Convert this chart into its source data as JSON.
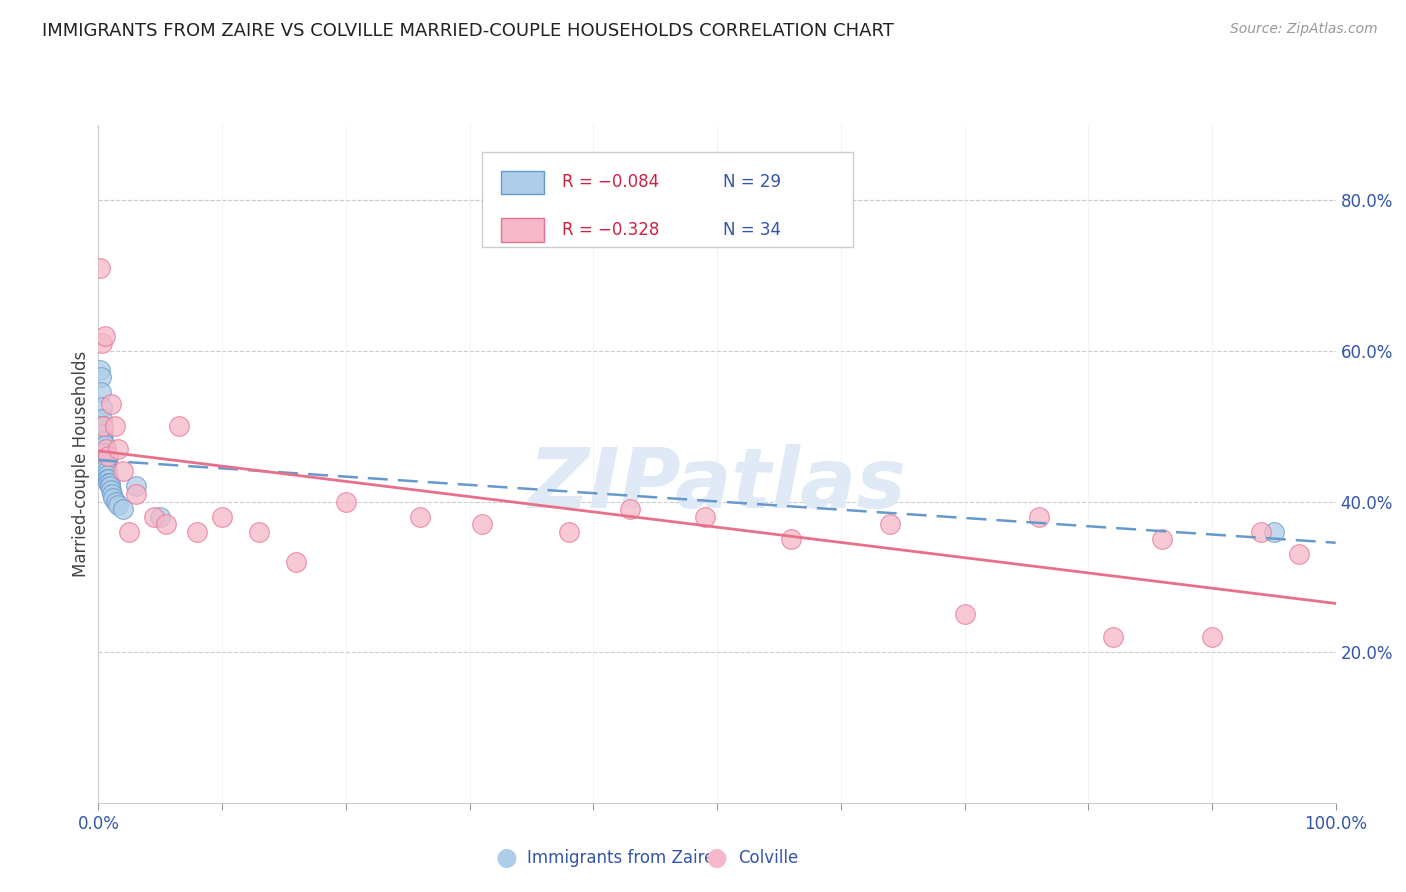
{
  "title": "IMMIGRANTS FROM ZAIRE VS COLVILLE MARRIED-COUPLE HOUSEHOLDS CORRELATION CHART",
  "source": "Source: ZipAtlas.com",
  "ylabel": "Married-couple Households",
  "ytick_labels": [
    "20.0%",
    "40.0%",
    "60.0%",
    "80.0%"
  ],
  "ytick_values": [
    0.2,
    0.4,
    0.6,
    0.8
  ],
  "watermark": "ZIPatlas",
  "legend_r1": "R = −0.084",
  "legend_n1": "N = 29",
  "legend_r2": "R = −0.328",
  "legend_n2": "N = 34",
  "series1_label": "Immigrants from Zaire",
  "series2_label": "Colville",
  "series1_fill": "#aecde8",
  "series2_fill": "#f5b8c8",
  "series1_edge": "#6699cc",
  "series2_edge": "#e87090",
  "trend1_color": "#6699cc",
  "trend2_color": "#e8708a",
  "xlim": [
    0.0,
    1.0
  ],
  "ylim": [
    0.0,
    0.9
  ],
  "xtick_positions": [
    0.0,
    0.1,
    0.2,
    0.3,
    0.4,
    0.5,
    0.6,
    0.7,
    0.8,
    0.9,
    1.0
  ],
  "series1_x": [
    0.001,
    0.002,
    0.002,
    0.003,
    0.003,
    0.004,
    0.004,
    0.004,
    0.005,
    0.005,
    0.005,
    0.006,
    0.006,
    0.007,
    0.007,
    0.007,
    0.008,
    0.008,
    0.009,
    0.009,
    0.01,
    0.011,
    0.012,
    0.014,
    0.016,
    0.02,
    0.03,
    0.05,
    0.95
  ],
  "series1_y": [
    0.575,
    0.565,
    0.545,
    0.525,
    0.51,
    0.5,
    0.49,
    0.48,
    0.475,
    0.465,
    0.455,
    0.45,
    0.445,
    0.44,
    0.435,
    0.43,
    0.43,
    0.425,
    0.425,
    0.42,
    0.415,
    0.41,
    0.405,
    0.4,
    0.395,
    0.39,
    0.42,
    0.38,
    0.36
  ],
  "series2_x": [
    0.001,
    0.003,
    0.004,
    0.005,
    0.006,
    0.008,
    0.01,
    0.013,
    0.016,
    0.02,
    0.025,
    0.03,
    0.045,
    0.055,
    0.065,
    0.08,
    0.1,
    0.13,
    0.16,
    0.2,
    0.26,
    0.31,
    0.38,
    0.43,
    0.49,
    0.56,
    0.64,
    0.7,
    0.76,
    0.82,
    0.86,
    0.9,
    0.94,
    0.97
  ],
  "series2_y": [
    0.71,
    0.61,
    0.5,
    0.62,
    0.47,
    0.46,
    0.53,
    0.5,
    0.47,
    0.44,
    0.36,
    0.41,
    0.38,
    0.37,
    0.5,
    0.36,
    0.38,
    0.36,
    0.32,
    0.4,
    0.38,
    0.37,
    0.36,
    0.39,
    0.38,
    0.35,
    0.37,
    0.25,
    0.38,
    0.22,
    0.35,
    0.22,
    0.36,
    0.33
  ]
}
